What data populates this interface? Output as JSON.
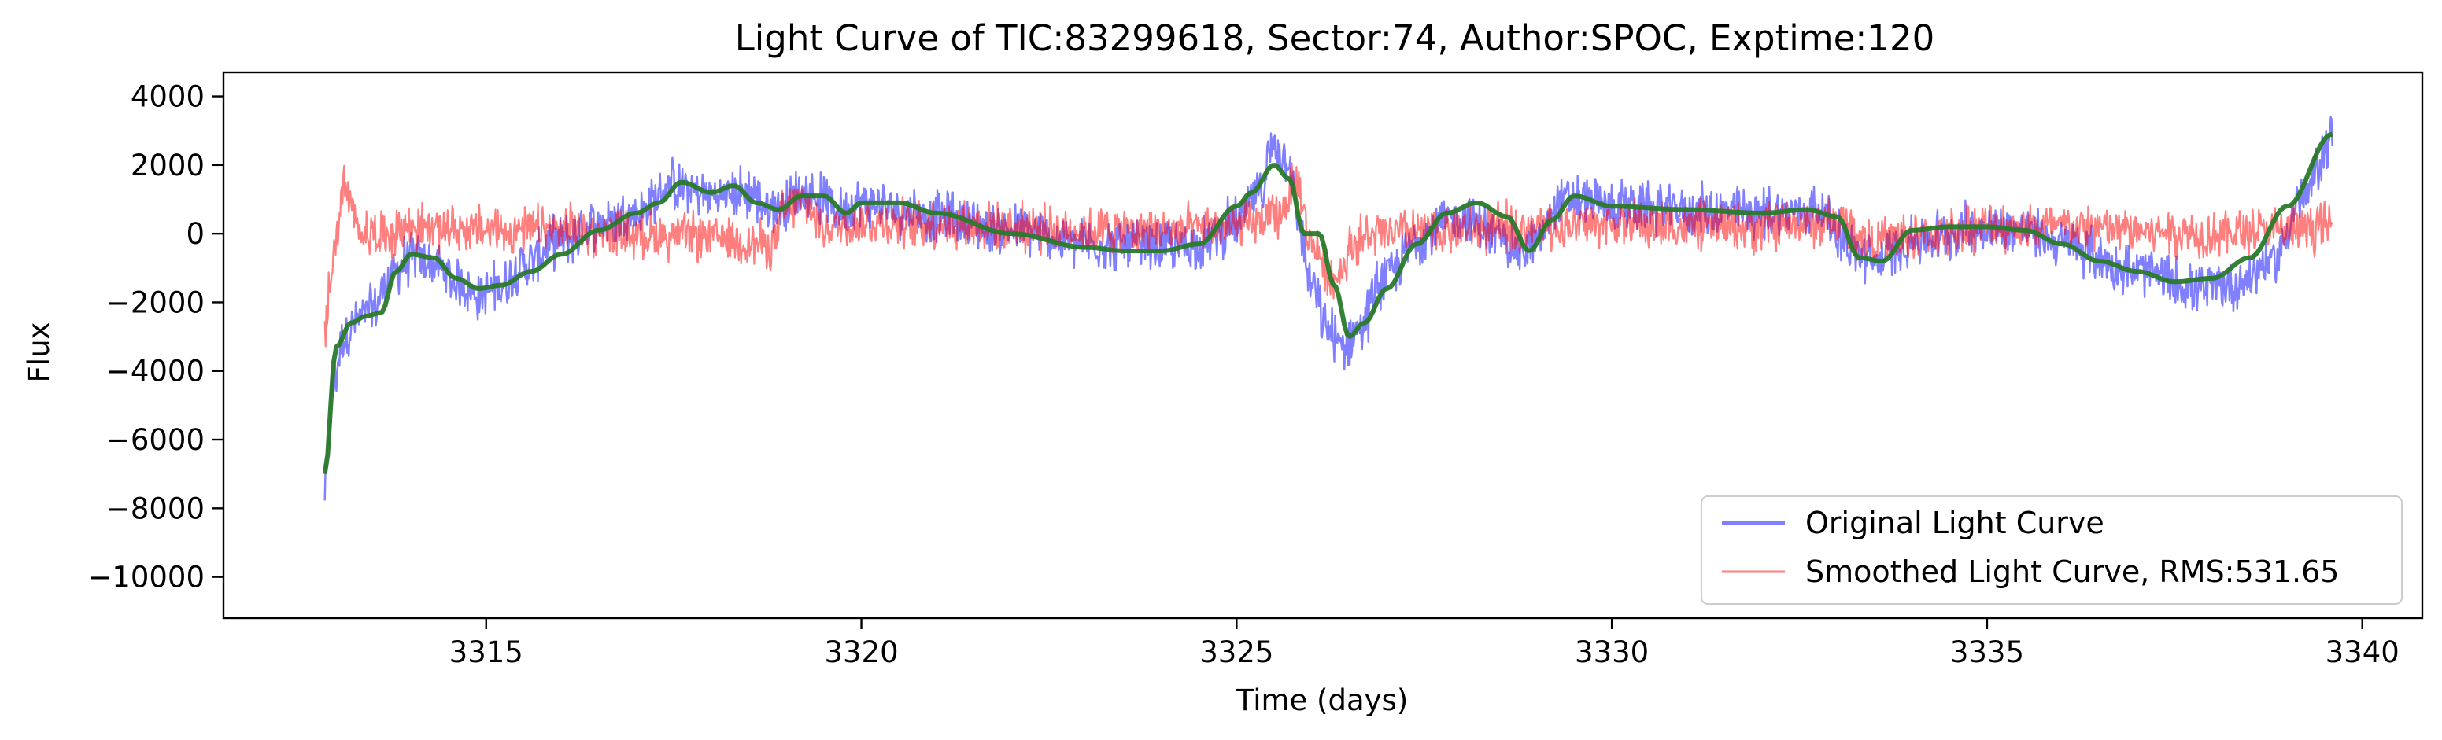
{
  "chart_data": {
    "type": "line",
    "title": "Light Curve of TIC:83299618, Sector:74, Author:SPOC, Exptime:120",
    "xlabel": "Time (days)",
    "ylabel": "Flux",
    "xlim": [
      3311.5,
      3340.8
    ],
    "ylim": [
      -11200,
      4700
    ],
    "xticks": [
      3315,
      3320,
      3325,
      3330,
      3335,
      3340
    ],
    "yticks": [
      4000,
      2000,
      0,
      -2000,
      -4000,
      -6000,
      -8000,
      -10000
    ],
    "ytick_labels": [
      "4000",
      "2000",
      "0",
      "−2000",
      "−4000",
      "−6000",
      "−8000",
      "−10000"
    ],
    "grid": false,
    "legend_position": "lower-right",
    "legend": [
      {
        "label": "Original Light Curve",
        "color": "#0000ff"
      },
      {
        "label": "Smoothed Light Curve, RMS:531.65",
        "color": "#ff0000"
      }
    ],
    "series": [
      {
        "name": "Original Light Curve",
        "color": "#0000ff",
        "opacity": 0.5,
        "noise": 900,
        "x": [
          3312.85,
          3312.95,
          3313.1,
          3313.3,
          3313.5,
          3313.7,
          3314.0,
          3314.3,
          3314.6,
          3314.9,
          3315.2,
          3315.5,
          3316.0,
          3316.5,
          3317.0,
          3317.5,
          3318.0,
          3318.5,
          3318.8,
          3319.0,
          3319.2,
          3319.5,
          3319.7,
          3320.0,
          3320.5,
          3321.0,
          3322.0,
          3323.0,
          3324.0,
          3324.5,
          3325.0,
          3325.3,
          3325.5,
          3325.7,
          3325.8,
          3326.0,
          3326.2,
          3326.4,
          3326.6,
          3327.0,
          3327.5,
          3328.0,
          3328.5,
          3328.8,
          3329.0,
          3329.3,
          3329.5,
          3330.0,
          3331.0,
          3332.0,
          3332.8,
          3333.0,
          3333.2,
          3333.5,
          3334.0,
          3335.0,
          3335.5,
          3336.0,
          3337.0,
          3337.8,
          3338.3,
          3338.8,
          3339.2,
          3339.6
        ],
        "values": [
          -7500,
          -4500,
          -3000,
          -2500,
          -2200,
          -1300,
          -700,
          -900,
          -1400,
          -1800,
          -1500,
          -900,
          -200,
          300,
          600,
          1400,
          1100,
          1200,
          700,
          900,
          1200,
          1000,
          700,
          900,
          700,
          500,
          100,
          -300,
          -400,
          -300,
          300,
          1200,
          2600,
          2200,
          500,
          -1500,
          -2800,
          -3300,
          -2800,
          -1200,
          0,
          500,
          -100,
          -500,
          -200,
          900,
          1000,
          800,
          700,
          600,
          700,
          100,
          -500,
          -800,
          -200,
          200,
          100,
          -300,
          -1100,
          -1600,
          -1500,
          -800,
          1000,
          2800
        ]
      },
      {
        "name": "Smoothed Light Curve, RMS:531.65",
        "color": "#ff0000",
        "opacity": 0.5,
        "noise": 850,
        "x": [
          3312.85,
          3312.95,
          3313.1,
          3313.3,
          3313.6,
          3314.0,
          3315.0,
          3316.0,
          3317.0,
          3318.0,
          3318.8,
          3319.0,
          3319.2,
          3319.5,
          3320.0,
          3321.0,
          3322.0,
          3323.0,
          3324.0,
          3325.0,
          3325.5,
          3325.8,
          3326.0,
          3326.3,
          3326.6,
          3327.0,
          3328.0,
          3329.0,
          3330.0,
          3331.0,
          3332.0,
          3333.0,
          3333.5,
          3334.0,
          3335.0,
          3336.0,
          3337.0,
          3338.0,
          3339.0,
          3339.6
        ],
        "values": [
          -2800,
          -800,
          1300,
          100,
          0,
          200,
          100,
          100,
          0,
          -100,
          -300,
          700,
          900,
          200,
          300,
          300,
          200,
          100,
          100,
          200,
          400,
          1400,
          -300,
          -1300,
          -200,
          0,
          100,
          200,
          300,
          200,
          200,
          300,
          -200,
          -100,
          200,
          200,
          100,
          0,
          100,
          200
        ]
      },
      {
        "name": "",
        "color": "#2a7a2a",
        "opacity": 0.95,
        "noise": 0,
        "x": [
          3312.85,
          3313.0,
          3313.2,
          3313.4,
          3313.6,
          3313.8,
          3314.0,
          3314.3,
          3314.6,
          3314.9,
          3315.2,
          3315.6,
          3316.0,
          3316.5,
          3317.0,
          3317.3,
          3317.6,
          3318.0,
          3318.3,
          3318.6,
          3318.9,
          3319.2,
          3319.5,
          3319.8,
          3320.0,
          3320.5,
          3321.0,
          3322.0,
          3323.0,
          3323.5,
          3324.0,
          3324.5,
          3325.0,
          3325.2,
          3325.5,
          3325.7,
          3325.9,
          3326.1,
          3326.3,
          3326.5,
          3326.7,
          3327.0,
          3327.4,
          3327.8,
          3328.2,
          3328.6,
          3328.9,
          3329.2,
          3329.5,
          3330.0,
          3331.0,
          3332.0,
          3332.6,
          3333.0,
          3333.3,
          3333.6,
          3334.0,
          3334.5,
          3335.0,
          3335.5,
          3336.0,
          3336.5,
          3337.0,
          3337.5,
          3338.0,
          3338.5,
          3339.0,
          3339.6
        ],
        "values": [
          -7000,
          -3300,
          -2600,
          -2400,
          -2300,
          -1100,
          -600,
          -700,
          -1300,
          -1600,
          -1500,
          -1100,
          -600,
          100,
          600,
          900,
          1500,
          1200,
          1400,
          900,
          700,
          1100,
          1100,
          600,
          900,
          900,
          600,
          0,
          -400,
          -500,
          -500,
          -300,
          800,
          1200,
          2000,
          1600,
          0,
          0,
          -1500,
          -3000,
          -2600,
          -1600,
          -300,
          600,
          900,
          500,
          -500,
          400,
          1100,
          800,
          700,
          600,
          700,
          500,
          -700,
          -800,
          100,
          200,
          200,
          100,
          -300,
          -800,
          -1100,
          -1400,
          -1300,
          -700,
          800,
          2900
        ]
      }
    ]
  }
}
